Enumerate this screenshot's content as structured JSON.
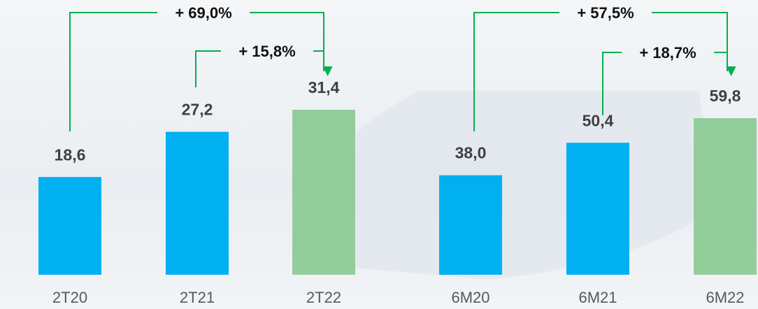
{
  "chart_data": [
    {
      "type": "bar",
      "categories": [
        "2T20",
        "2T21",
        "2T22"
      ],
      "values": [
        18.6,
        27.2,
        31.4
      ],
      "value_labels": [
        "18,6",
        "27,2",
        "31,4"
      ],
      "colors": [
        "#00b0f0",
        "#00b0f0",
        "#92cd9a"
      ],
      "annotations": [
        "+ 69,0%",
        "+ 15,8%"
      ]
    },
    {
      "type": "bar",
      "categories": [
        "6M20",
        "6M21",
        "6M22"
      ],
      "values": [
        38.0,
        50.4,
        59.8
      ],
      "value_labels": [
        "38,0",
        "50,4",
        "59,8"
      ],
      "colors": [
        "#00b0f0",
        "#00b0f0",
        "#92cd9a"
      ],
      "annotations": [
        "+ 57,5%",
        "+ 18,7%"
      ]
    }
  ]
}
